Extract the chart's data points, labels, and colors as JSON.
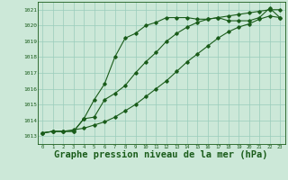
{
  "background_color": "#cce8d8",
  "grid_color": "#99ccbb",
  "line_color": "#1a5c1a",
  "xlabel": "Graphe pression niveau de la mer (hPa)",
  "xlabel_fontsize": 7.5,
  "xlim": [
    -0.5,
    23.5
  ],
  "ylim": [
    1012.5,
    1021.5
  ],
  "yticks": [
    1013,
    1014,
    1015,
    1016,
    1017,
    1018,
    1019,
    1020,
    1021
  ],
  "xticks": [
    0,
    1,
    2,
    3,
    4,
    5,
    6,
    7,
    8,
    9,
    10,
    11,
    12,
    13,
    14,
    15,
    16,
    17,
    18,
    19,
    20,
    21,
    22,
    23
  ],
  "line1_x": [
    0,
    1,
    2,
    3,
    4,
    5,
    6,
    7,
    8,
    9,
    10,
    11,
    12,
    13,
    14,
    15,
    16,
    17,
    18,
    19,
    20,
    21,
    22,
    23
  ],
  "line1_y": [
    1013.2,
    1013.3,
    1013.3,
    1013.3,
    1014.1,
    1015.3,
    1016.3,
    1018.0,
    1019.2,
    1019.5,
    1020.0,
    1020.2,
    1020.5,
    1020.5,
    1020.5,
    1020.4,
    1020.4,
    1020.5,
    1020.3,
    1020.3,
    1020.3,
    1020.5,
    1021.1,
    1020.5
  ],
  "line2_x": [
    0,
    1,
    2,
    3,
    4,
    5,
    6,
    7,
    8,
    9,
    10,
    11,
    12,
    13,
    14,
    15,
    16,
    17,
    18,
    19,
    20,
    21,
    22,
    23
  ],
  "line2_y": [
    1013.2,
    1013.3,
    1013.3,
    1013.3,
    1014.1,
    1014.2,
    1015.3,
    1015.7,
    1016.2,
    1017.0,
    1017.7,
    1018.3,
    1019.0,
    1019.5,
    1019.9,
    1020.2,
    1020.4,
    1020.5,
    1020.6,
    1020.7,
    1020.8,
    1020.9,
    1021.0,
    1021.0
  ],
  "line3_x": [
    0,
    1,
    2,
    3,
    4,
    5,
    6,
    7,
    8,
    9,
    10,
    11,
    12,
    13,
    14,
    15,
    16,
    17,
    18,
    19,
    20,
    21,
    22,
    23
  ],
  "line3_y": [
    1013.2,
    1013.3,
    1013.3,
    1013.4,
    1013.5,
    1013.7,
    1013.9,
    1014.2,
    1014.6,
    1015.0,
    1015.5,
    1016.0,
    1016.5,
    1017.1,
    1017.7,
    1018.2,
    1018.7,
    1019.2,
    1019.6,
    1019.9,
    1020.1,
    1020.4,
    1020.6,
    1020.5
  ]
}
